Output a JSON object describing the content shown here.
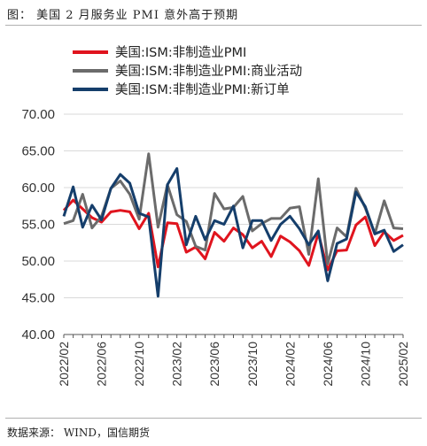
{
  "header": {
    "title": "图：  美国 2 月服务业 PMI 意外高于预期"
  },
  "footer": {
    "source": "数据来源：  WIND，国信期货"
  },
  "chart_data": {
    "type": "line",
    "ylim": [
      40,
      70
    ],
    "yticks": [
      "40.00",
      "45.00",
      "50.00",
      "55.00",
      "60.00",
      "65.00",
      "70.00"
    ],
    "x": [
      "2022/02",
      "2022/03",
      "2022/04",
      "2022/05",
      "2022/06",
      "2022/07",
      "2022/08",
      "2022/09",
      "2022/10",
      "2022/11",
      "2022/12",
      "2023/01",
      "2023/02",
      "2023/03",
      "2023/04",
      "2023/05",
      "2023/06",
      "2023/07",
      "2023/08",
      "2023/09",
      "2023/10",
      "2023/11",
      "2023/12",
      "2024/01",
      "2024/02",
      "2024/03",
      "2024/04",
      "2024/05",
      "2024/06",
      "2024/07",
      "2024/08",
      "2024/09",
      "2024/10",
      "2024/11",
      "2024/12",
      "2025/01",
      "2025/02"
    ],
    "xtick_labels": [
      "2022/02",
      "2022/06",
      "2022/10",
      "2023/02",
      "2023/06",
      "2023/10",
      "2024/02",
      "2024/06",
      "2024/10",
      "2025/02"
    ],
    "legend_position": "top-left",
    "grid": "horizontal",
    "series": [
      {
        "name": "美国:ISM:非制造业PMI",
        "color": "#e0141e",
        "values": [
          56.9,
          58.3,
          57.1,
          55.9,
          55.3,
          56.7,
          56.9,
          56.7,
          54.4,
          56.5,
          49.2,
          55.2,
          55.1,
          51.2,
          51.9,
          50.3,
          53.9,
          52.7,
          54.5,
          53.6,
          51.8,
          52.7,
          50.6,
          53.4,
          52.6,
          51.4,
          49.4,
          53.8,
          48.8,
          51.4,
          51.5,
          54.9,
          56.0,
          52.1,
          54.0,
          52.8,
          53.5
        ]
      },
      {
        "name": "美国:ISM:非制造业PMI:商业活动",
        "color": "#6b6b6b",
        "values": [
          55.1,
          55.5,
          59.1,
          54.5,
          56.1,
          59.9,
          60.9,
          59.1,
          55.7,
          64.6,
          54.6,
          60.4,
          56.3,
          55.4,
          52.0,
          51.5,
          59.2,
          57.1,
          57.3,
          58.8,
          54.1,
          55.1,
          55.8,
          55.8,
          57.2,
          57.4,
          50.9,
          61.2,
          49.6,
          54.5,
          53.3,
          59.9,
          57.2,
          53.7,
          58.2,
          54.5,
          54.4
        ]
      },
      {
        "name": "美国:ISM:非制造业PMI:新订单",
        "color": "#153e6b",
        "values": [
          56.1,
          60.1,
          54.6,
          57.6,
          55.6,
          59.9,
          61.8,
          60.6,
          56.5,
          56.0,
          45.2,
          60.4,
          62.6,
          52.2,
          56.1,
          52.9,
          55.5,
          55.0,
          57.5,
          51.8,
          55.5,
          55.5,
          52.8,
          55.0,
          56.1,
          54.4,
          52.2,
          54.1,
          47.3,
          52.4,
          53.0,
          59.4,
          57.4,
          53.7,
          54.2,
          51.3,
          52.2
        ]
      }
    ]
  }
}
